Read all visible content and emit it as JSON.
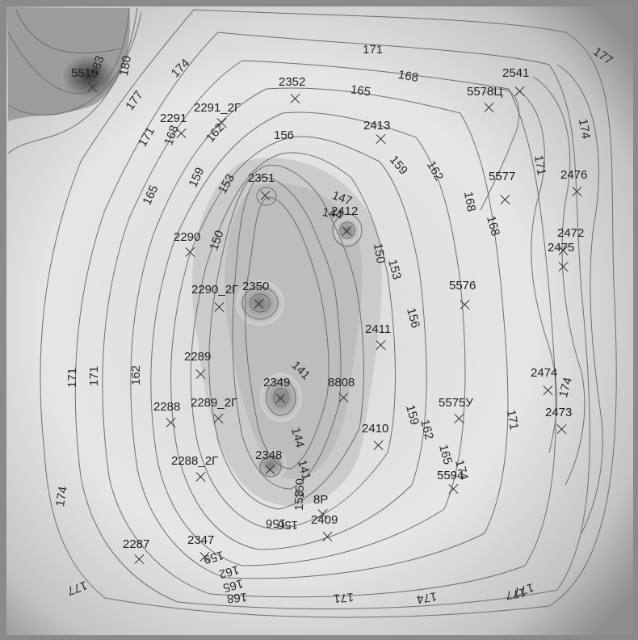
{
  "map": {
    "contour_labels": [
      "171",
      "177",
      "183",
      "180",
      "174",
      "177",
      "168",
      "165",
      "171",
      "168",
      "162",
      "162",
      "156",
      "159",
      "165",
      "159",
      "153",
      "150",
      "147",
      "144",
      "150",
      "153",
      "156",
      "159",
      "162",
      "165",
      "168",
      "171",
      "174",
      "171",
      "168",
      "162",
      "141",
      "144",
      "141",
      "150",
      "153",
      "156",
      "159",
      "162",
      "165",
      "168",
      "171",
      "174",
      "174",
      "171",
      "174",
      "177",
      "177",
      "171",
      "174",
      "177",
      "156"
    ],
    "wells": [
      "5519",
      "2291",
      "2291_2Г",
      "2352",
      "2413",
      "5578Ц",
      "2541",
      "2351",
      "2412",
      "5577",
      "2476",
      "2290",
      "2472",
      "2475",
      "2290_2Г",
      "2350",
      "5576",
      "2411",
      "2289",
      "2474",
      "8808",
      "2349",
      "2288",
      "2289_2Г",
      "5575У",
      "2473",
      "2410",
      "2288_2Г",
      "2348",
      "5594",
      "8Р",
      "2409",
      "2287",
      "2347"
    ]
  }
}
